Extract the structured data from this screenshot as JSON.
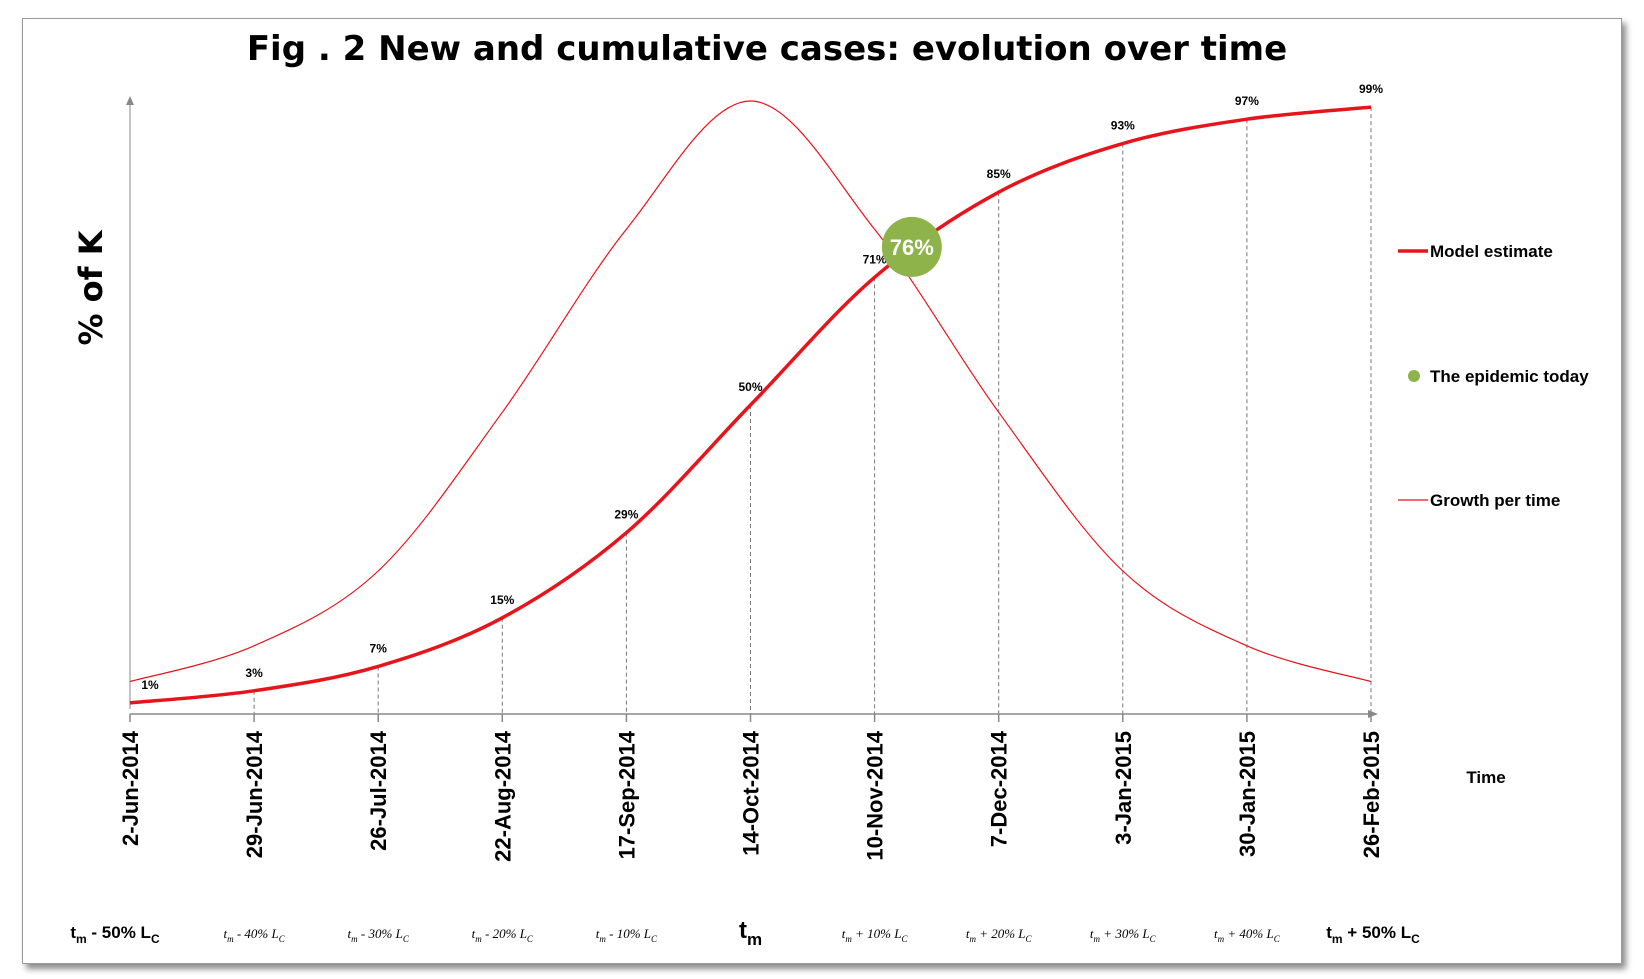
{
  "chart_data": {
    "type": "line",
    "title": "Fig . 2 New and cumulative  cases: evolution over time",
    "ylabel": "% of K",
    "xlabel": "Time",
    "x_dates": [
      "2-Jun-2014",
      "29-Jun-2014",
      "26-Jul-2014",
      "22-Aug-2014",
      "17-Sep-2014",
      "14-Oct-2014",
      "10-Nov-2014",
      "7-Dec-2014",
      "3-Jan-2015",
      "30-Jan-2015",
      "26-Feb-2015"
    ],
    "x_secondary_labels": [
      {
        "main": "t",
        "sub": "m",
        "rest": " - 50% L",
        "sub2": "C",
        "style": "bold"
      },
      {
        "main": "t",
        "sub": "m",
        "rest": " - 40% L",
        "sub2": "C",
        "style": "italic"
      },
      {
        "main": "t",
        "sub": "m",
        "rest": " - 30% L",
        "sub2": "C",
        "style": "italic"
      },
      {
        "main": "t",
        "sub": "m",
        "rest": " - 20% L",
        "sub2": "C",
        "style": "italic"
      },
      {
        "main": "t",
        "sub": "m",
        "rest": " - 10% L",
        "sub2": "C",
        "style": "italic"
      },
      {
        "main": "t",
        "sub": "m",
        "rest": "",
        "sub2": "",
        "style": "center"
      },
      {
        "main": "t",
        "sub": "m",
        "rest": " + 10% L",
        "sub2": "C",
        "style": "italic"
      },
      {
        "main": "t",
        "sub": "m",
        "rest": " + 20% L",
        "sub2": "C",
        "style": "italic"
      },
      {
        "main": "t",
        "sub": "m",
        "rest": " + 30% L",
        "sub2": "C",
        "style": "italic"
      },
      {
        "main": "t",
        "sub": "m",
        "rest": "  + 40% L",
        "sub2": "C",
        "style": "italic"
      },
      {
        "main": "t",
        "sub": "m",
        "rest": " + 50% L",
        "sub2": "C",
        "style": "bold"
      }
    ],
    "series": [
      {
        "name": "Model estimate",
        "values": [
          1,
          3,
          7,
          15,
          29,
          50,
          71,
          85,
          93,
          97,
          99
        ],
        "labels": [
          "1%",
          "3%",
          "7%",
          "15%",
          "29%",
          "50%",
          "71%",
          "85%",
          "93%",
          "97%",
          "99%"
        ],
        "color": "#e8141b",
        "style": "thick"
      },
      {
        "name": "Growth per time",
        "values": [
          4.5,
          10.4,
          22.7,
          48.8,
          78.9,
          100,
          78.9,
          48.8,
          22.7,
          10.4,
          4.5
        ],
        "color": "#e8141b",
        "style": "thin"
      }
    ],
    "today": {
      "name": "The epidemic today",
      "label": "76%",
      "value": 76,
      "x_position": 6.3,
      "color": "#8db34a"
    },
    "ylim": [
      0,
      100
    ],
    "grid": "vertical dashed drop lines at each date",
    "legend_position": "right"
  }
}
